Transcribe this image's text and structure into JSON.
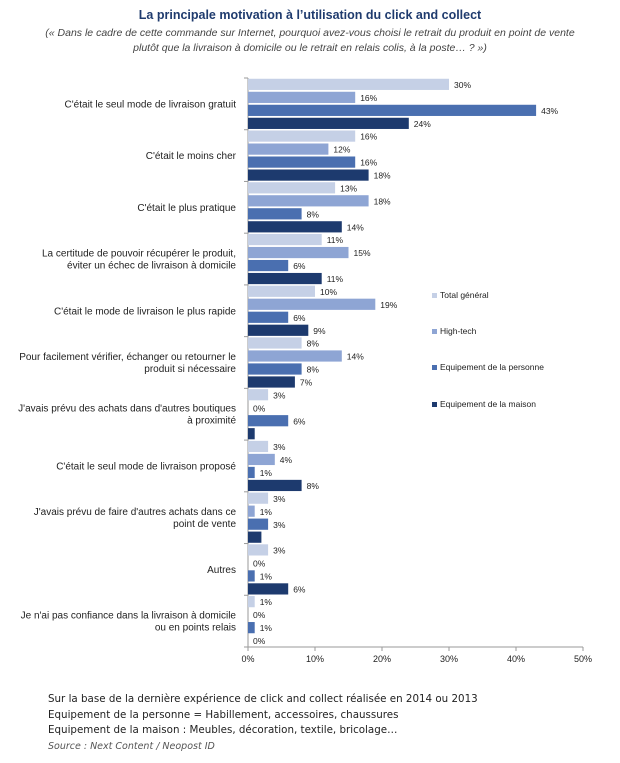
{
  "header": {
    "title": "La principale motivation à l’utilisation du click and collect",
    "subtitle_line1": "(« Dans le cadre de cette commande sur Internet, pourquoi avez-vous choisi le retrait du produit en point de vente",
    "subtitle_line2": "plutôt que la livraison à domicile ou le retrait en relais colis, à la poste… ? »)"
  },
  "chart_data": {
    "type": "bar",
    "orientation": "horizontal",
    "categories": [
      [
        "C'était le seul mode de livraison gratuit"
      ],
      [
        "C'était le moins cher"
      ],
      [
        "C'était le plus pratique"
      ],
      [
        "La certitude de pouvoir récupérer le produit,",
        "éviter un échec de livraison à domicile"
      ],
      [
        "C'était le mode de livraison le plus rapide"
      ],
      [
        "Pour facilement vérifier, échanger ou retourner le",
        "produit si nécessaire"
      ],
      [
        "J'avais prévu des achats dans d'autres boutiques",
        "à proximité"
      ],
      [
        "C'était le seul mode de livraison proposé"
      ],
      [
        "J'avais prévu de faire d'autres achats dans ce",
        "point de vente"
      ],
      [
        "Autres"
      ],
      [
        "Je n'ai pas confiance dans la livraison à domicile",
        "ou en points relais"
      ]
    ],
    "series": [
      {
        "name": "Total général",
        "color": "#c5d0e6",
        "values": [
          30,
          16,
          13,
          11,
          10,
          8,
          3,
          3,
          3,
          3,
          1
        ],
        "labels": [
          "30%",
          "16%",
          "13%",
          "11%",
          "10%",
          "8%",
          "3%",
          "3%",
          "3%",
          "3%",
          "1%"
        ]
      },
      {
        "name": "High-tech",
        "color": "#8ea5d4",
        "values": [
          16,
          12,
          18,
          15,
          19,
          14,
          0,
          4,
          1,
          0,
          0
        ],
        "labels": [
          "16%",
          "12%",
          "18%",
          "15%",
          "19%",
          "14%",
          "0%",
          "4%",
          "1%",
          "0%",
          "0%"
        ]
      },
      {
        "name": "Equipement de la personne",
        "color": "#4a6fb0",
        "values": [
          43,
          16,
          8,
          6,
          6,
          8,
          6,
          1,
          3,
          1,
          1
        ],
        "labels": [
          "43%",
          "16%",
          "8%",
          "6%",
          "6%",
          "8%",
          "6%",
          "1%",
          "3%",
          "1%",
          "1%"
        ]
      },
      {
        "name": "Equipement de la maison",
        "color": "#1d3a6e",
        "values": [
          24,
          18,
          14,
          11,
          9,
          7,
          1,
          8,
          2,
          6,
          0
        ],
        "labels": [
          "24%",
          "18%",
          "14%",
          "11%",
          "9%",
          "7%",
          "",
          "8%",
          "",
          "6%",
          "0%"
        ]
      }
    ],
    "xlim": [
      0,
      50
    ],
    "xticks": [
      "0%",
      "10%",
      "20%",
      "30%",
      "40%",
      "50%"
    ],
    "legend_position": "right"
  },
  "notes": {
    "line1": "Sur la base de la dernière expérience de click and collect réalisée en 2014 ou 2013",
    "line2": "Equipement de la personne = Habillement, accessoires, chaussures",
    "line3": "Equipement de la maison : Meubles, décoration, textile, bricolage…",
    "source": "Source : Next Content / Neopost ID"
  }
}
